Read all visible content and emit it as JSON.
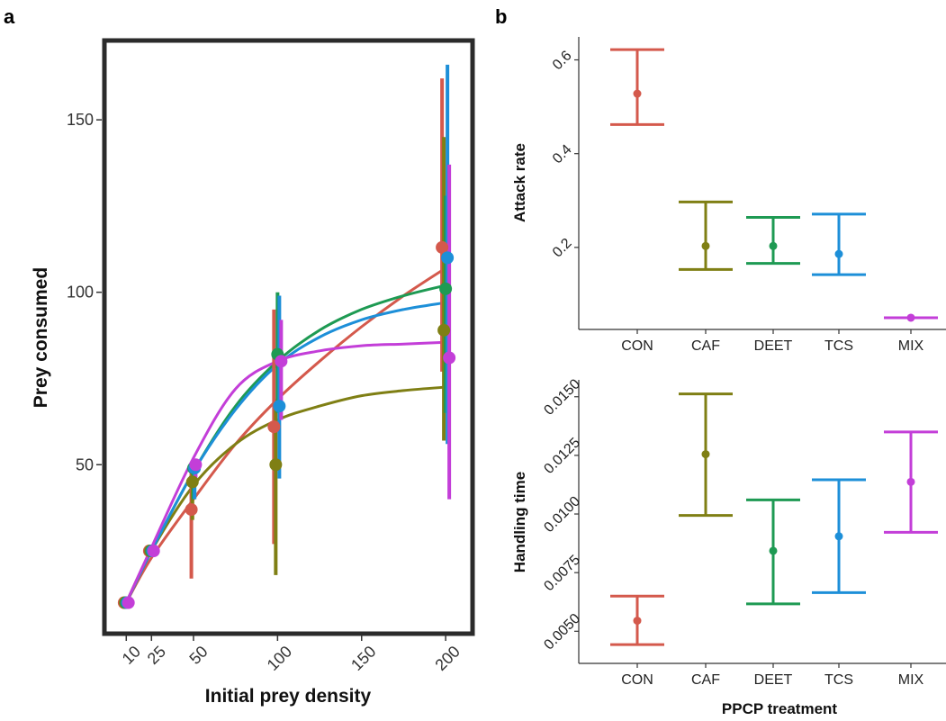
{
  "panel_labels": {
    "a": "a",
    "b": "b"
  },
  "colors": {
    "CON": "#d4594c",
    "CAF": "#7f7f14",
    "DEET": "#1e9a53",
    "TCS": "#1d8fd8",
    "MIX": "#c33ed8"
  },
  "chart_data": [
    {
      "type": "scatter",
      "panel": "a",
      "title": "",
      "xlabel": "Initial prey density",
      "ylabel": "Prey consumed",
      "x_ticks": [
        10,
        25,
        50,
        100,
        150,
        200
      ],
      "x_tick_labels": [
        "10",
        "25",
        "50",
        "100",
        "150",
        "200"
      ],
      "y_ticks": [
        50,
        100,
        150
      ],
      "y_tick_labels": [
        "50",
        "100",
        "150"
      ],
      "xlim": [
        -3,
        216
      ],
      "ylim": [
        1,
        173
      ],
      "grid": false,
      "series": [
        {
          "name": "CON",
          "x": [
            10,
            25,
            50,
            100,
            200
          ],
          "y": [
            10,
            25,
            37,
            61,
            113
          ],
          "err_low": [
            10,
            25,
            17,
            27,
            77
          ],
          "err_high": [
            10,
            25,
            50,
            95,
            162
          ],
          "curve": [
            [
              10,
              10
            ],
            [
              25,
              23
            ],
            [
              50,
              40
            ],
            [
              75,
              56
            ],
            [
              100,
              69
            ],
            [
              125,
              80
            ],
            [
              150,
              90
            ],
            [
              175,
              99
            ],
            [
              200,
              107
            ]
          ]
        },
        {
          "name": "CAF",
          "x": [
            10,
            25,
            50,
            100,
            200
          ],
          "y": [
            10,
            25,
            45,
            50,
            89
          ],
          "err_low": [
            10,
            25,
            34,
            18,
            57
          ],
          "err_high": [
            10,
            25,
            50,
            68,
            145
          ],
          "curve": [
            [
              10,
              10
            ],
            [
              25,
              25
            ],
            [
              50,
              44
            ],
            [
              75,
              56
            ],
            [
              100,
              63
            ],
            [
              125,
              67
            ],
            [
              150,
              70
            ],
            [
              175,
              71.5
            ],
            [
              200,
              72.5
            ]
          ]
        },
        {
          "name": "DEET",
          "x": [
            10,
            25,
            50,
            100,
            200
          ],
          "y": [
            10,
            25,
            49,
            82,
            101
          ],
          "err_low": [
            10,
            25,
            40,
            65,
            65
          ],
          "err_high": [
            10,
            25,
            50,
            100,
            128
          ],
          "curve": [
            [
              10,
              10
            ],
            [
              25,
              25
            ],
            [
              50,
              48
            ],
            [
              75,
              67
            ],
            [
              100,
              80
            ],
            [
              125,
              89
            ],
            [
              150,
              95
            ],
            [
              175,
              99
            ],
            [
              200,
              102
            ]
          ]
        },
        {
          "name": "TCS",
          "x": [
            10,
            25,
            50,
            100,
            200
          ],
          "y": [
            10,
            25,
            49,
            67,
            110
          ],
          "err_low": [
            10,
            25,
            40,
            46,
            56
          ],
          "err_high": [
            10,
            25,
            50,
            99,
            166
          ],
          "curve": [
            [
              10,
              10
            ],
            [
              25,
              25
            ],
            [
              50,
              48
            ],
            [
              75,
              66
            ],
            [
              100,
              79
            ],
            [
              125,
              87
            ],
            [
              150,
              92
            ],
            [
              175,
              95
            ],
            [
              200,
              97
            ]
          ]
        },
        {
          "name": "MIX",
          "x": [
            10,
            25,
            50,
            100,
            200
          ],
          "y": [
            10,
            25,
            50,
            80,
            81
          ],
          "err_low": [
            10,
            25,
            44,
            63,
            40
          ],
          "err_high": [
            10,
            25,
            50,
            92,
            137
          ],
          "curve": [
            [
              10,
              10
            ],
            [
              25,
              26
            ],
            [
              50,
              52
            ],
            [
              75,
              72
            ],
            [
              100,
              80
            ],
            [
              125,
              83
            ],
            [
              150,
              84.5
            ],
            [
              175,
              85
            ],
            [
              200,
              85.5
            ]
          ]
        }
      ]
    },
    {
      "type": "errorbar",
      "panel": "b-top",
      "title": "",
      "xlabel": "",
      "ylabel": "Attack rate",
      "categories": [
        "CON",
        "CAF",
        "DEET",
        "TCS",
        "MIX"
      ],
      "values": [
        0.528,
        0.203,
        0.203,
        0.186,
        0.05
      ],
      "lower": [
        0.462,
        0.153,
        0.166,
        0.142,
        0.05
      ],
      "upper": [
        0.622,
        0.297,
        0.264,
        0.271,
        0.05
      ],
      "y_ticks": [
        0.2,
        0.4,
        0.6
      ],
      "y_tick_labels": [
        "0.2",
        "0.4",
        "0.6"
      ],
      "ylim": [
        0.025,
        0.649
      ],
      "grid": false
    },
    {
      "type": "errorbar",
      "panel": "b-bottom",
      "title": "",
      "xlabel": "PPCP treatment",
      "ylabel": "Handling time",
      "categories": [
        "CON",
        "CAF",
        "DEET",
        "TCS",
        "MIX"
      ],
      "values": [
        0.00545,
        0.01255,
        0.00843,
        0.00905,
        0.01137
      ],
      "lower": [
        0.00443,
        0.00994,
        0.00617,
        0.00665,
        0.00922
      ],
      "upper": [
        0.0065,
        0.01512,
        0.0106,
        0.01146,
        0.0135
      ],
      "y_ticks": [
        0.005,
        0.0075,
        0.01,
        0.0125,
        0.015
      ],
      "y_tick_labels": [
        "0.0050",
        "0.0075",
        "0.0100",
        "0.0125",
        "0.0150"
      ],
      "ylim": [
        0.00363,
        0.01572
      ],
      "grid": false
    }
  ]
}
